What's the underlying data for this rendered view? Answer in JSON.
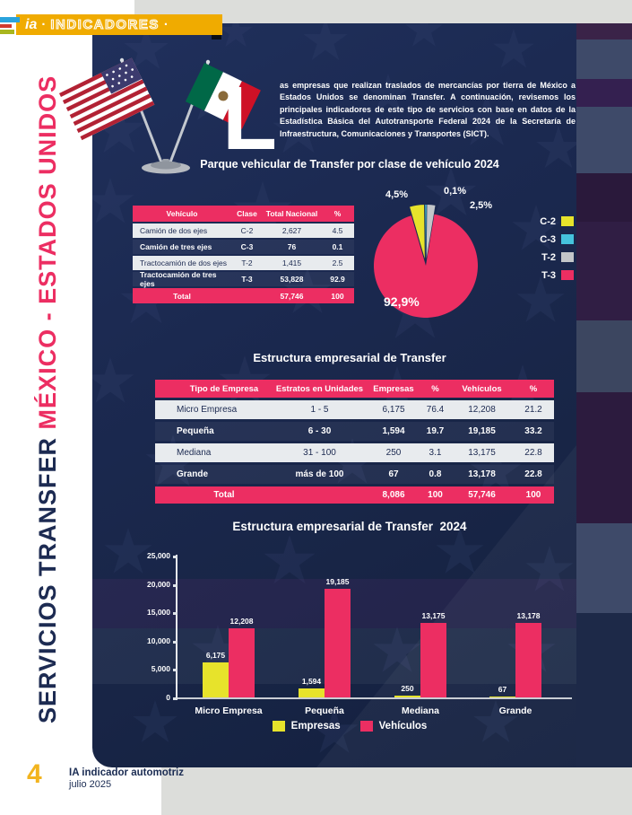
{
  "banner": {
    "logo": "ia",
    "dot1": "·",
    "title": "INDICADORES",
    "dot2": "·"
  },
  "sidebar_title": {
    "black_part": "SERVICIOS TRANSFER ",
    "pink_part": "MÉXICO - ESTADOS UNIDOS"
  },
  "intro": {
    "dropcap": "L",
    "text": "as empresas que realizan traslados de mercancías por tierra de México a Estados Unidos se denominan Transfer. A continuación, revisemos los principales indicadores de este tipo de servicios con base en datos de la Estadística Básica del Autotransporte Federal 2024 de la Secretaría de Infraestructura, Comunicaciones y Transportes (SICT)."
  },
  "section1": {
    "title": "Parque vehicular de Transfer por clase de vehículo 2024",
    "table": {
      "headers": [
        "Vehículo",
        "Clase",
        "Total Nacional",
        "%"
      ],
      "rows": [
        [
          "Camión de dos ejes",
          "C-2",
          "2,627",
          "4.5"
        ],
        [
          "Camión de tres ejes",
          "C-3",
          "76",
          "0.1"
        ],
        [
          "Tractocamión de dos ejes",
          "T-2",
          "1,415",
          "2.5"
        ],
        [
          "Tractocamión de tres ejes",
          "T-3",
          "53,828",
          "92.9"
        ]
      ],
      "total_row": [
        "Total",
        "",
        "57,746",
        "100"
      ]
    }
  },
  "section2": {
    "title": "Estructura empresarial de Transfer",
    "table": {
      "headers": [
        "Tipo de Empresa",
        "Estratos en Unidades",
        "Empresas",
        "%",
        "Vehículos",
        "%"
      ],
      "rows": [
        [
          "Micro Empresa",
          "1 - 5",
          "6,175",
          "76.4",
          "12,208",
          "21.2"
        ],
        [
          "Pequeña",
          "6 - 30",
          "1,594",
          "19.7",
          "19,185",
          "33.2"
        ],
        [
          "Mediana",
          "31 - 100",
          "250",
          "3.1",
          "13,175",
          "22.8"
        ],
        [
          "Grande",
          "más de 100",
          "67",
          "0.8",
          "13,178",
          "22.8"
        ]
      ],
      "total_row": [
        "Total",
        "",
        "8,086",
        "100",
        "57,746",
        "100"
      ]
    }
  },
  "section3": {
    "title": "Estructura empresarial de Transfer  2024"
  },
  "footer": {
    "page_number": "4",
    "publication": "IA indicador automotriz",
    "date": "julio 2025"
  },
  "colors": {
    "navy": "#1b2950",
    "pink": "#ec2e62",
    "yellow": "#e7e32b",
    "cyan": "#45c3dc",
    "gray_slice": "#c3c6c9",
    "banner_gold": "#f0ab00",
    "page_number_gold": "#f2b41f"
  },
  "chart_data": [
    {
      "type": "pie",
      "title": "Parque vehicular de Transfer por clase de vehículo 2024",
      "labels": [
        "C-2",
        "C-3",
        "T-2",
        "T-3"
      ],
      "values": [
        4.5,
        0.1,
        2.5,
        92.9
      ],
      "value_labels": [
        "4,5%",
        "0,1%",
        "2,5%",
        "92,9%"
      ],
      "colors": [
        "#e7e32b",
        "#45c3dc",
        "#c3c6c9",
        "#ec2e62"
      ],
      "legend_position": "right"
    },
    {
      "type": "bar",
      "title": "Estructura empresarial de Transfer  2024",
      "categories": [
        "Micro Empresa",
        "Pequeña",
        "Mediana",
        "Grande"
      ],
      "series": [
        {
          "name": "Empresas",
          "color": "#e7e32b",
          "values": [
            6175,
            1594,
            250,
            67
          ],
          "labels": [
            "6,175",
            "1,594",
            "250",
            "67"
          ]
        },
        {
          "name": "Vehículos",
          "color": "#ec2e62",
          "values": [
            12208,
            19185,
            13175,
            13178
          ],
          "labels": [
            "12,208",
            "19,185",
            "13,175",
            "13,178"
          ]
        }
      ],
      "ylim": [
        0,
        25000
      ],
      "yticks": [
        "25,000",
        "20,000",
        "15,000",
        "10,000",
        "5,000",
        "0"
      ],
      "grid": false,
      "legend_position": "bottom"
    }
  ]
}
